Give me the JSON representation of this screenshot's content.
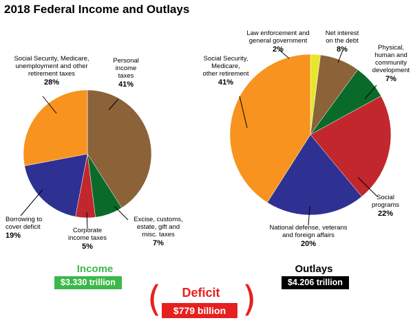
{
  "title": "2018 Federal Income and Outlays",
  "income": {
    "label": "Income",
    "total": "$3.330 trillion"
  },
  "outlays": {
    "label": "Outlays",
    "total": "$4.206 trillion"
  },
  "deficit": {
    "label": "Deficit",
    "total": "$779 billion",
    "paren_left": "(",
    "paren_right": ")"
  },
  "chart_data": [
    {
      "type": "pie",
      "title": "Income",
      "slices": [
        {
          "label": [
            "Personal",
            "income",
            "taxes"
          ],
          "value": 41,
          "pct": "41%",
          "color": "#8c6239"
        },
        {
          "label": [
            "Excise, customs,",
            "estate, gift and",
            "misc. taxes"
          ],
          "value": 7,
          "pct": "7%",
          "color": "#0a6a2a"
        },
        {
          "label": [
            "Corporate",
            "income taxes"
          ],
          "value": 5,
          "pct": "5%",
          "color": "#c1272d"
        },
        {
          "label": [
            "Borrowing to",
            "cover deficit"
          ],
          "value": 19,
          "pct": "19%",
          "color": "#2e3192"
        },
        {
          "label": [
            "Social Security, Medicare,",
            "unemployment and other",
            "retirement taxes"
          ],
          "value": 28,
          "pct": "28%",
          "color": "#f7931e"
        }
      ]
    },
    {
      "type": "pie",
      "title": "Outlays",
      "slices": [
        {
          "label": [
            "Law enforcement and",
            "general government"
          ],
          "value": 2,
          "pct": "2%",
          "color": "#e6e62a"
        },
        {
          "label": [
            "Net interest",
            "on the debt"
          ],
          "value": 8,
          "pct": "8%",
          "color": "#8c6239"
        },
        {
          "label": [
            "Physical,",
            "human and",
            "community",
            "development"
          ],
          "value": 7,
          "pct": "7%",
          "color": "#0a6a2a"
        },
        {
          "label": [
            "Social",
            "programs"
          ],
          "value": 22,
          "pct": "22%",
          "color": "#c1272d"
        },
        {
          "label": [
            "National defense, veterans",
            "and foreign affairs"
          ],
          "value": 20,
          "pct": "20%",
          "color": "#2e3192"
        },
        {
          "label": [
            "Social Security,",
            "Medicare,",
            "other retirement"
          ],
          "value": 41,
          "pct": "41%",
          "color": "#f7931e"
        }
      ]
    }
  ]
}
